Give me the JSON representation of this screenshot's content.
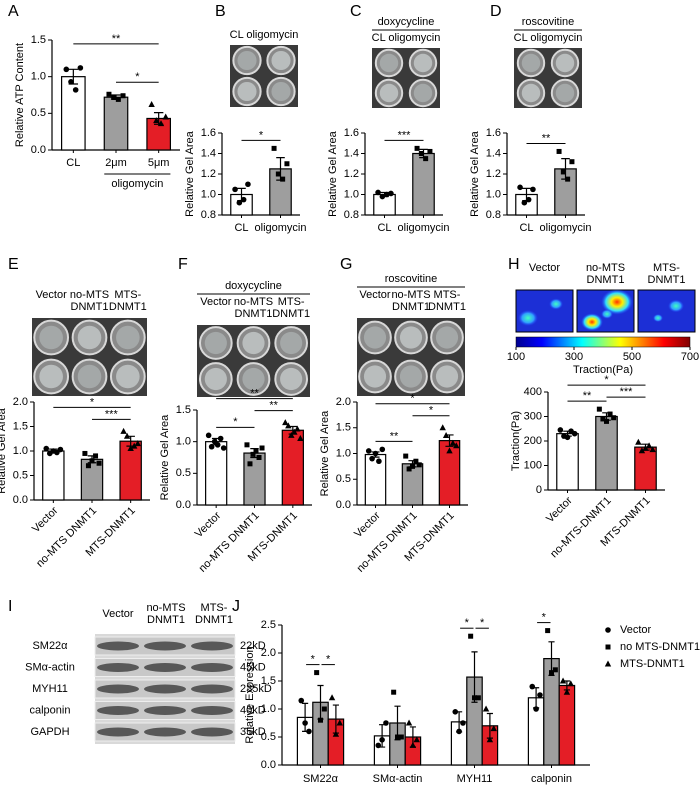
{
  "chart_data": [
    {
      "type": "bar",
      "panel": "A",
      "ylabel": "Relative ATP Content",
      "categories": [
        "CL",
        "2μm",
        "5μm"
      ],
      "group_label": {
        "text": "oligomycin",
        "from": 1,
        "to": 2
      },
      "values": [
        1.0,
        0.72,
        0.43
      ],
      "errors": [
        0.1,
        0.03,
        0.08
      ],
      "colors": [
        "#ffffff",
        "#9e9e9e",
        "#e41e26"
      ],
      "markers": [
        "circle",
        "square",
        "triangle"
      ],
      "points": [
        [
          1.1,
          0.93,
          0.82,
          1.12
        ],
        [
          0.76,
          0.72,
          0.69,
          0.74
        ],
        [
          0.62,
          0.4,
          0.36,
          0.45
        ]
      ],
      "ylim": [
        0,
        1.5
      ],
      "yticks": [
        {
          "value": 0,
          "label": "0.0"
        },
        0.5,
        {
          "value": 1,
          "label": "1.0"
        },
        1.5
      ],
      "significance": [
        {
          "from": 0,
          "to": 2,
          "label": "**"
        },
        {
          "from": 1,
          "to": 2,
          "label": "*"
        }
      ]
    },
    {
      "type": "bar",
      "panel": "B",
      "ylabel": "Relative Gel Area",
      "image": {
        "labels": [
          "CL oligomycin"
        ]
      },
      "categories": [
        "CL",
        "oligomycin"
      ],
      "values": [
        1.0,
        1.25
      ],
      "errors": [
        0.06,
        0.11
      ],
      "colors": [
        "#ffffff",
        "#9e9e9e"
      ],
      "markers": [
        "circle",
        "square"
      ],
      "points": [
        [
          1.05,
          0.92,
          0.95,
          1.1
        ],
        [
          1.45,
          1.2,
          1.15,
          1.3
        ]
      ],
      "ylim": [
        0.8,
        1.6
      ],
      "yticks": [
        0.8,
        {
          "value": 1,
          "label": "1.0"
        },
        1.2,
        1.4,
        1.6
      ],
      "significance": [
        {
          "from": 0,
          "to": 1,
          "label": "*"
        }
      ]
    },
    {
      "type": "bar",
      "panel": "C",
      "ylabel": "Relative Gel Area",
      "image": {
        "treatment": "doxycycline",
        "labels": [
          "CL oligomycin"
        ]
      },
      "categories": [
        "CL",
        "oligomycin"
      ],
      "values": [
        1.0,
        1.4
      ],
      "errors": [
        0.02,
        0.04
      ],
      "colors": [
        "#ffffff",
        "#9e9e9e"
      ],
      "markers": [
        "circle",
        "square"
      ],
      "points": [
        [
          1.02,
          0.98,
          1.0,
          1.01
        ],
        [
          1.45,
          1.4,
          1.35,
          1.42
        ]
      ],
      "ylim": [
        0.8,
        1.6
      ],
      "yticks": [
        0.8,
        {
          "value": 1,
          "label": "1.0"
        },
        1.2,
        1.4,
        1.6
      ],
      "significance": [
        {
          "from": 0,
          "to": 1,
          "label": "***"
        }
      ]
    },
    {
      "type": "bar",
      "panel": "D",
      "ylabel": "Relative Gel Area",
      "image": {
        "treatment": "roscovitine",
        "labels": [
          "CL oligomycin"
        ]
      },
      "categories": [
        "CL",
        "oligomycin"
      ],
      "values": [
        1.0,
        1.25
      ],
      "errors": [
        0.06,
        0.1
      ],
      "colors": [
        "#ffffff",
        "#9e9e9e"
      ],
      "markers": [
        "circle",
        "square"
      ],
      "points": [
        [
          1.07,
          0.92,
          0.95,
          1.05
        ],
        [
          1.42,
          1.22,
          1.15,
          1.32
        ]
      ],
      "ylim": [
        0.8,
        1.6
      ],
      "yticks": [
        0.8,
        {
          "value": 1,
          "label": "1.0"
        },
        1.2,
        1.4,
        1.6
      ],
      "significance": [
        {
          "from": 0,
          "to": 1,
          "label": "**"
        }
      ]
    },
    {
      "type": "bar",
      "panel": "E",
      "ylabel": "Relative Gel Area",
      "image": {
        "labels": [
          "Vector",
          "no-MTS DNMT1",
          "MTS-DNMT1"
        ]
      },
      "categories": [
        "Vector",
        "no-MTS DNMT1",
        "MTS-DNMT1"
      ],
      "values": [
        1.0,
        0.83,
        1.2
      ],
      "errors": [
        0.04,
        0.07,
        0.1
      ],
      "colors": [
        "#ffffff",
        "#9e9e9e",
        "#e41e26"
      ],
      "markers": [
        "circle",
        "square",
        "triangle"
      ],
      "points": [
        [
          1.05,
          0.95,
          1.0,
          0.97,
          1.03
        ],
        [
          0.95,
          0.7,
          0.8,
          0.9,
          0.75
        ],
        [
          1.4,
          1.3,
          1.05,
          1.1,
          1.15
        ]
      ],
      "ylim": [
        0,
        2
      ],
      "yticks": [
        {
          "value": 0,
          "label": "0.0"
        },
        0.5,
        {
          "value": 1,
          "label": "1.0"
        },
        1.5,
        {
          "value": 2,
          "label": "2.0"
        }
      ],
      "significance": [
        {
          "from": 0,
          "to": 2,
          "label": "*"
        },
        {
          "from": 1,
          "to": 2,
          "label": "***"
        }
      ]
    },
    {
      "type": "bar",
      "panel": "F",
      "ylabel": "Relative Gel Area",
      "image": {
        "treatment": "doxycycline",
        "labels": [
          "Vector",
          "no-MTS DNMT1",
          "MTS-DNMT1"
        ]
      },
      "categories": [
        "Vector",
        "no-MTS DNMT1",
        "MTS-DNMT1"
      ],
      "values": [
        1.0,
        0.82,
        1.18
      ],
      "errors": [
        0.05,
        0.07,
        0.06
      ],
      "colors": [
        "#ffffff",
        "#9e9e9e",
        "#e41e26"
      ],
      "markers": [
        "circle",
        "square",
        "triangle"
      ],
      "points": [
        [
          1.1,
          0.92,
          1.0,
          0.95,
          1.05,
          0.9
        ],
        [
          0.95,
          0.65,
          0.8,
          0.85,
          0.75,
          0.9
        ],
        [
          1.3,
          1.25,
          1.1,
          1.15,
          1.2,
          1.05
        ]
      ],
      "ylim": [
        0,
        1.5
      ],
      "yticks": [
        {
          "value": 0,
          "label": "0.0"
        },
        0.5,
        {
          "value": 1,
          "label": "1.0"
        },
        1.5
      ],
      "significance": [
        {
          "from": 0,
          "to": 2,
          "label": "**"
        },
        {
          "from": 0,
          "to": 1,
          "label": "*"
        },
        {
          "from": 1,
          "to": 2,
          "label": "**"
        }
      ]
    },
    {
      "type": "bar",
      "panel": "G",
      "ylabel": "Relative Gel Area",
      "image": {
        "treatment": "roscovitine",
        "labels": [
          "Vector",
          "no-MTS DNMT1",
          "MTS-DNMT1"
        ]
      },
      "categories": [
        "Vector",
        "no-MTS DNMT1",
        "MTS-DNMT1"
      ],
      "values": [
        0.98,
        0.8,
        1.25
      ],
      "errors": [
        0.05,
        0.06,
        0.11
      ],
      "colors": [
        "#ffffff",
        "#9e9e9e",
        "#e41e26"
      ],
      "markers": [
        "circle",
        "square",
        "triangle"
      ],
      "points": [
        [
          1.05,
          0.9,
          1.0,
          0.85,
          1.08
        ],
        [
          0.95,
          0.7,
          0.75,
          0.85,
          0.78
        ],
        [
          1.5,
          1.35,
          1.05,
          1.2,
          1.15
        ]
      ],
      "ylim": [
        0,
        2
      ],
      "yticks": [
        {
          "value": 0,
          "label": "0.0"
        },
        0.5,
        {
          "value": 1,
          "label": "1.0"
        },
        1.5,
        {
          "value": 2,
          "label": "2.0"
        }
      ],
      "significance": [
        {
          "from": 0,
          "to": 2,
          "label": "*"
        },
        {
          "from": 0,
          "to": 1,
          "label": "**"
        },
        {
          "from": 1,
          "to": 2,
          "label": "*"
        }
      ]
    },
    {
      "type": "bar",
      "panel": "H",
      "ylabel": "Traction(Pa)",
      "heatmaps": {
        "labels": [
          "Vector",
          "no-MTS DNMT1",
          "MTS- DNMT1"
        ]
      },
      "colorbar": {
        "lim": [
          100,
          700
        ],
        "ticks": [
          100,
          300,
          500,
          700
        ],
        "label": "Traction(Pa)"
      },
      "categories": [
        "Vector",
        "no-MTS-DNMT1",
        "MTS-DNMT1"
      ],
      "values": [
        230,
        300,
        175
      ],
      "errors": [
        10,
        15,
        12
      ],
      "colors": [
        "#ffffff",
        "#9e9e9e",
        "#e41e26"
      ],
      "markers": [
        "circle",
        "square",
        "triangle"
      ],
      "points": [
        [
          245,
          220,
          215,
          240,
          230
        ],
        [
          330,
          290,
          280,
          310,
          295
        ],
        [
          195,
          160,
          170,
          180,
          165
        ]
      ],
      "ylim": [
        0,
        400
      ],
      "yticks": [
        0,
        100,
        200,
        300,
        400
      ],
      "significance": [
        {
          "from": 0,
          "to": 2,
          "label": "*"
        },
        {
          "from": 0,
          "to": 1,
          "label": "**"
        },
        {
          "from": 1,
          "to": 2,
          "label": "***"
        }
      ]
    },
    {
      "type": "grouped_bar",
      "panel": "J",
      "ylabel": "Relative Expression",
      "categories": [
        "SM22α",
        "SMα-actin",
        "MYH11",
        "calponin"
      ],
      "legend": "right",
      "series": [
        {
          "name": "Vector",
          "color": "#ffffff",
          "marker": "circle",
          "values": [
            0.85,
            0.52,
            0.77,
            1.2
          ],
          "errors": [
            0.25,
            0.2,
            0.18,
            0.18
          ],
          "points": [
            [
              1.15,
              0.75,
              0.6
            ],
            [
              0.35,
              0.45,
              0.75
            ],
            [
              0.95,
              0.6,
              0.75
            ],
            [
              1.4,
              1.0,
              1.25
            ]
          ]
        },
        {
          "name": "no MTS-DNMT1",
          "color": "#9e9e9e",
          "marker": "square",
          "values": [
            1.12,
            0.75,
            1.57,
            1.9
          ],
          "errors": [
            0.3,
            0.3,
            0.45,
            0.3
          ],
          "points": [
            [
              1.65,
              0.8,
              1.0
            ],
            [
              1.3,
              0.5,
              0.5
            ],
            [
              2.3,
              1.2,
              1.2
            ],
            [
              2.4,
              1.65,
              1.7
            ]
          ]
        },
        {
          "name": "MTS-DNMT1",
          "color": "#e41e26",
          "marker": "triangle",
          "values": [
            0.82,
            0.5,
            0.7,
            1.42
          ],
          "errors": [
            0.25,
            0.18,
            0.22,
            0.08
          ],
          "points": [
            [
              1.2,
              0.55,
              0.75
            ],
            [
              0.75,
              0.35,
              0.45
            ],
            [
              1.0,
              0.45,
              0.65
            ],
            [
              1.5,
              1.3,
              1.45
            ]
          ]
        }
      ],
      "ylim": [
        0,
        2.5
      ],
      "yticks": [
        {
          "value": 0,
          "label": "0.0"
        },
        0.5,
        {
          "value": 1,
          "label": "1.0"
        },
        1.5,
        {
          "value": 2,
          "label": "2.0"
        },
        2.5
      ],
      "significance": [
        {
          "category": 0,
          "from": 0,
          "to": 1,
          "label": "*"
        },
        {
          "category": 0,
          "from": 1,
          "to": 2,
          "label": "*"
        },
        {
          "category": 2,
          "from": 0,
          "to": 1,
          "label": "*"
        },
        {
          "category": 2,
          "from": 1,
          "to": 2,
          "label": "*"
        },
        {
          "category": 3,
          "from": 0,
          "to": 1,
          "label": "*"
        }
      ]
    }
  ],
  "blot": {
    "panel": "I",
    "lanes": [
      "Vector",
      "no-MTS DNMT1",
      "MTS-DNMT1"
    ],
    "proteins": [
      "SM22α",
      "SMα-actin",
      "MYH11",
      "calponin",
      "GAPDH"
    ],
    "sizes": [
      "22kD",
      "45kD",
      "235kD",
      "40kD",
      "35kD"
    ]
  }
}
